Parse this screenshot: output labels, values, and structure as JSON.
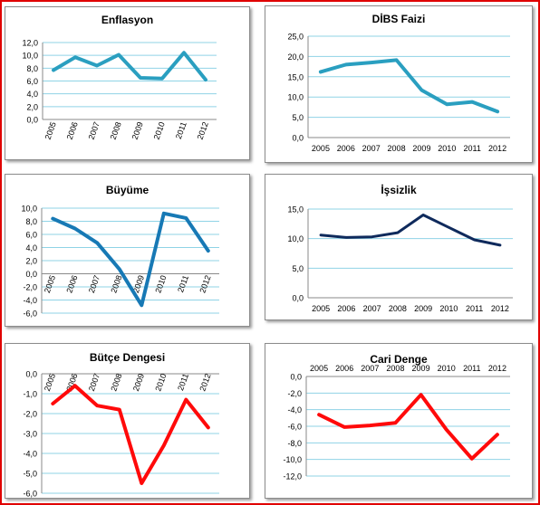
{
  "colors": {
    "frame": "#e00000",
    "grid": "#8fd3e6",
    "teal": "#2a9fc0",
    "blue": "#1779b5",
    "navy": "#0f2a5c",
    "red": "#ff0a0a"
  },
  "chart_data": [
    {
      "id": "enflasyon",
      "type": "line",
      "title": "Enflasyon",
      "color": "#2a9fc0",
      "x": [
        "2005",
        "2006",
        "2007",
        "2008",
        "2009",
        "2010",
        "2011",
        "2012"
      ],
      "values": [
        7.7,
        9.7,
        8.4,
        10.1,
        6.5,
        6.4,
        10.4,
        6.2
      ],
      "ylim": [
        0,
        12
      ],
      "yticks": [
        "0,0",
        "2,0",
        "4,0",
        "6,0",
        "8,0",
        "10,0",
        "12,0"
      ],
      "xlabel_position": "bottom-rotated",
      "grid": true
    },
    {
      "id": "dibs",
      "type": "line",
      "title": "DİBS Faizi",
      "color": "#2a9fc0",
      "x": [
        "2005",
        "2006",
        "2007",
        "2008",
        "2009",
        "2010",
        "2011",
        "2012"
      ],
      "values": [
        16.2,
        18.0,
        18.5,
        19.1,
        11.7,
        8.2,
        8.8,
        6.4
      ],
      "ylim": [
        0,
        25
      ],
      "yticks": [
        "0,0",
        "5,0",
        "10,0",
        "15,0",
        "20,0",
        "25,0"
      ],
      "xlabel_position": "bottom",
      "grid": true
    },
    {
      "id": "buyume",
      "type": "line",
      "title": "Büyüme",
      "color": "#1779b5",
      "x": [
        "2005",
        "2006",
        "2007",
        "2008",
        "2009",
        "2010",
        "2011",
        "2012"
      ],
      "values": [
        8.4,
        6.9,
        4.7,
        0.7,
        -4.8,
        9.2,
        8.5,
        3.5
      ],
      "ylim": [
        -6,
        10
      ],
      "yticks": [
        "-6,0",
        "-4,0",
        "-2,0",
        "0,0",
        "2,0",
        "4,0",
        "6,0",
        "8,0",
        "10,0"
      ],
      "xlabel_position": "zero-rotated",
      "grid": true
    },
    {
      "id": "issizlik",
      "type": "line",
      "title": "İşsizlik",
      "color": "#0f2a5c",
      "x": [
        "2005",
        "2006",
        "2007",
        "2008",
        "2009",
        "2010",
        "2011",
        "2012"
      ],
      "values": [
        10.6,
        10.2,
        10.3,
        11.0,
        14.0,
        11.9,
        9.8,
        8.9
      ],
      "ylim": [
        0,
        15
      ],
      "yticks": [
        "0,0",
        "5,0",
        "10,0",
        "15,0"
      ],
      "xlabel_position": "bottom",
      "grid": true
    },
    {
      "id": "butce",
      "type": "line",
      "title": "Bütçe Dengesi",
      "color": "#ff0a0a",
      "x": [
        "2005",
        "2006",
        "2007",
        "2008",
        "2009",
        "2010",
        "2011",
        "2012"
      ],
      "values": [
        -1.5,
        -0.6,
        -1.6,
        -1.8,
        -5.5,
        -3.6,
        -1.3,
        -2.7
      ],
      "ylim": [
        -6,
        0
      ],
      "yticks": [
        "-6,0",
        "-5,0",
        "-4,0",
        "-3,0",
        "-2,0",
        "-1,0",
        "0,0"
      ],
      "xlabel_position": "top-rotated",
      "grid": true
    },
    {
      "id": "cari",
      "type": "line",
      "title": "Cari Denge",
      "color": "#ff0a0a",
      "x": [
        "2005",
        "2006",
        "2007",
        "2008",
        "2009",
        "2010",
        "2011",
        "2012"
      ],
      "values": [
        -4.6,
        -6.1,
        -5.9,
        -5.6,
        -2.2,
        -6.4,
        -9.9,
        -7.0
      ],
      "ylim": [
        -12,
        0
      ],
      "yticks": [
        "-12,0",
        "-10,0",
        "-8,0",
        "-6,0",
        "-4,0",
        "-2,0",
        "0,0"
      ],
      "xlabel_position": "top",
      "grid": true
    }
  ]
}
